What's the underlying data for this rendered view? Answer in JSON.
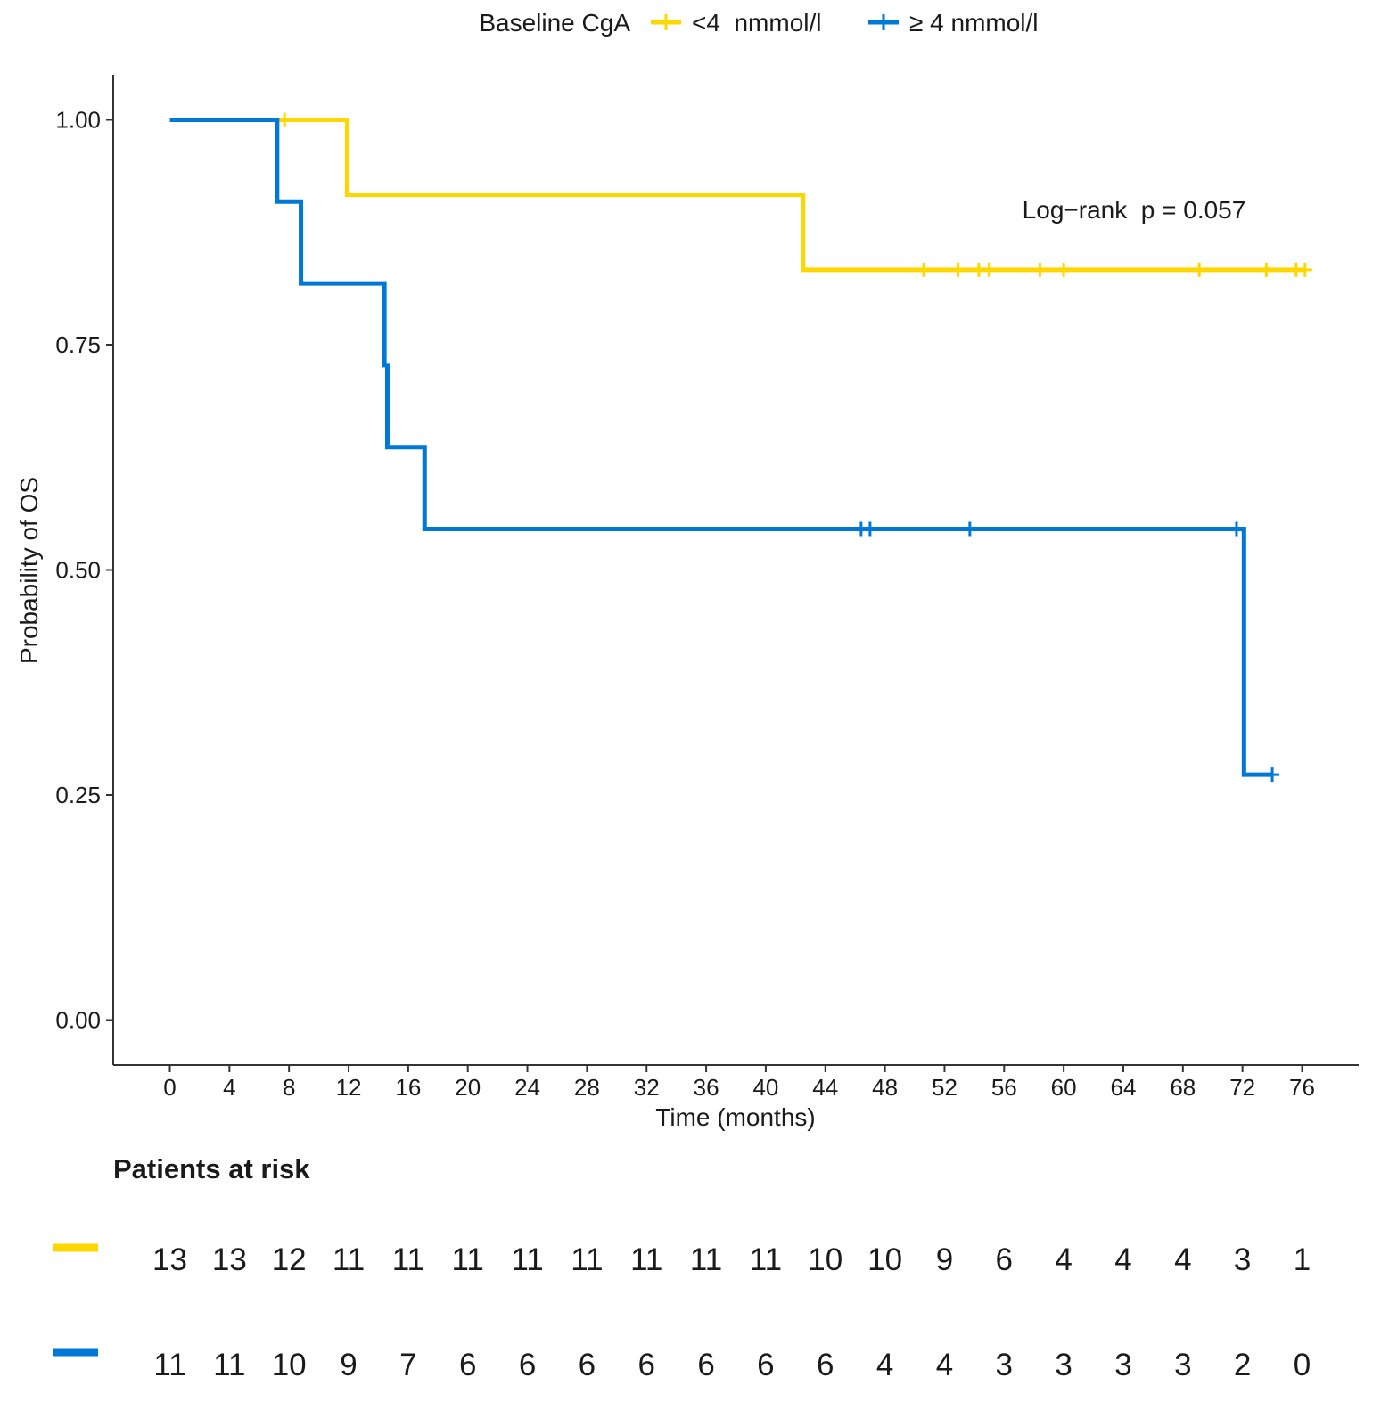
{
  "chart_data": {
    "type": "line",
    "subtype": "kaplan-meier-step",
    "legend": {
      "title": "Baseline CgA",
      "placement": "top",
      "entries": [
        "<4  nmmol/l",
        "≥ 4 nmmol/l"
      ]
    },
    "xlabel": "Time (months)",
    "ylabel": "Probability of OS",
    "xlim": [
      -3.8,
      79.8
    ],
    "ylim": [
      -0.05,
      1.05
    ],
    "xticks": [
      0,
      4,
      8,
      12,
      16,
      20,
      24,
      28,
      32,
      36,
      40,
      44,
      48,
      52,
      56,
      60,
      64,
      68,
      72,
      76
    ],
    "yticks": [
      0,
      0.25,
      0.5,
      0.75,
      1.0
    ],
    "ytick_labels": [
      "0.00",
      "0.25",
      "0.50",
      "0.75",
      "1.00"
    ],
    "grid": false,
    "annotation": {
      "text": "Log−rank  p = 0.057",
      "x": 64.5,
      "y": 0.895
    },
    "series": [
      {
        "name": "<4  nmmol/l",
        "color": "#FFD700",
        "steps": [
          [
            0,
            1.0
          ],
          [
            11.9,
            0.9167
          ],
          [
            42.5,
            0.8333
          ],
          [
            76.2,
            0.8333
          ]
        ],
        "censor_times": [
          7.7,
          50.6,
          52.9,
          54.3,
          55.0,
          58.4,
          60.0,
          69.1,
          73.6,
          75.6,
          76.2
        ],
        "at_risk": [
          13,
          13,
          12,
          11,
          11,
          11,
          11,
          11,
          11,
          11,
          11,
          10,
          10,
          9,
          6,
          4,
          4,
          4,
          3,
          1
        ]
      },
      {
        "name": "≥ 4 nmmol/l",
        "color": "#0078D7",
        "steps": [
          [
            0,
            1.0
          ],
          [
            7.2,
            0.9091
          ],
          [
            8.8,
            0.8182
          ],
          [
            14.4,
            0.7273
          ],
          [
            14.6,
            0.6364
          ],
          [
            17.1,
            0.5455
          ],
          [
            72.1,
            0.2727
          ],
          [
            74.0,
            0.2727
          ]
        ],
        "censor_times": [
          46.4,
          47.0,
          53.7,
          71.6,
          74.0
        ],
        "at_risk": [
          11,
          11,
          10,
          9,
          7,
          6,
          6,
          6,
          6,
          6,
          6,
          6,
          4,
          4,
          3,
          3,
          3,
          3,
          2,
          0
        ]
      }
    ],
    "risk_table": {
      "title": "Patients at risk"
    }
  }
}
